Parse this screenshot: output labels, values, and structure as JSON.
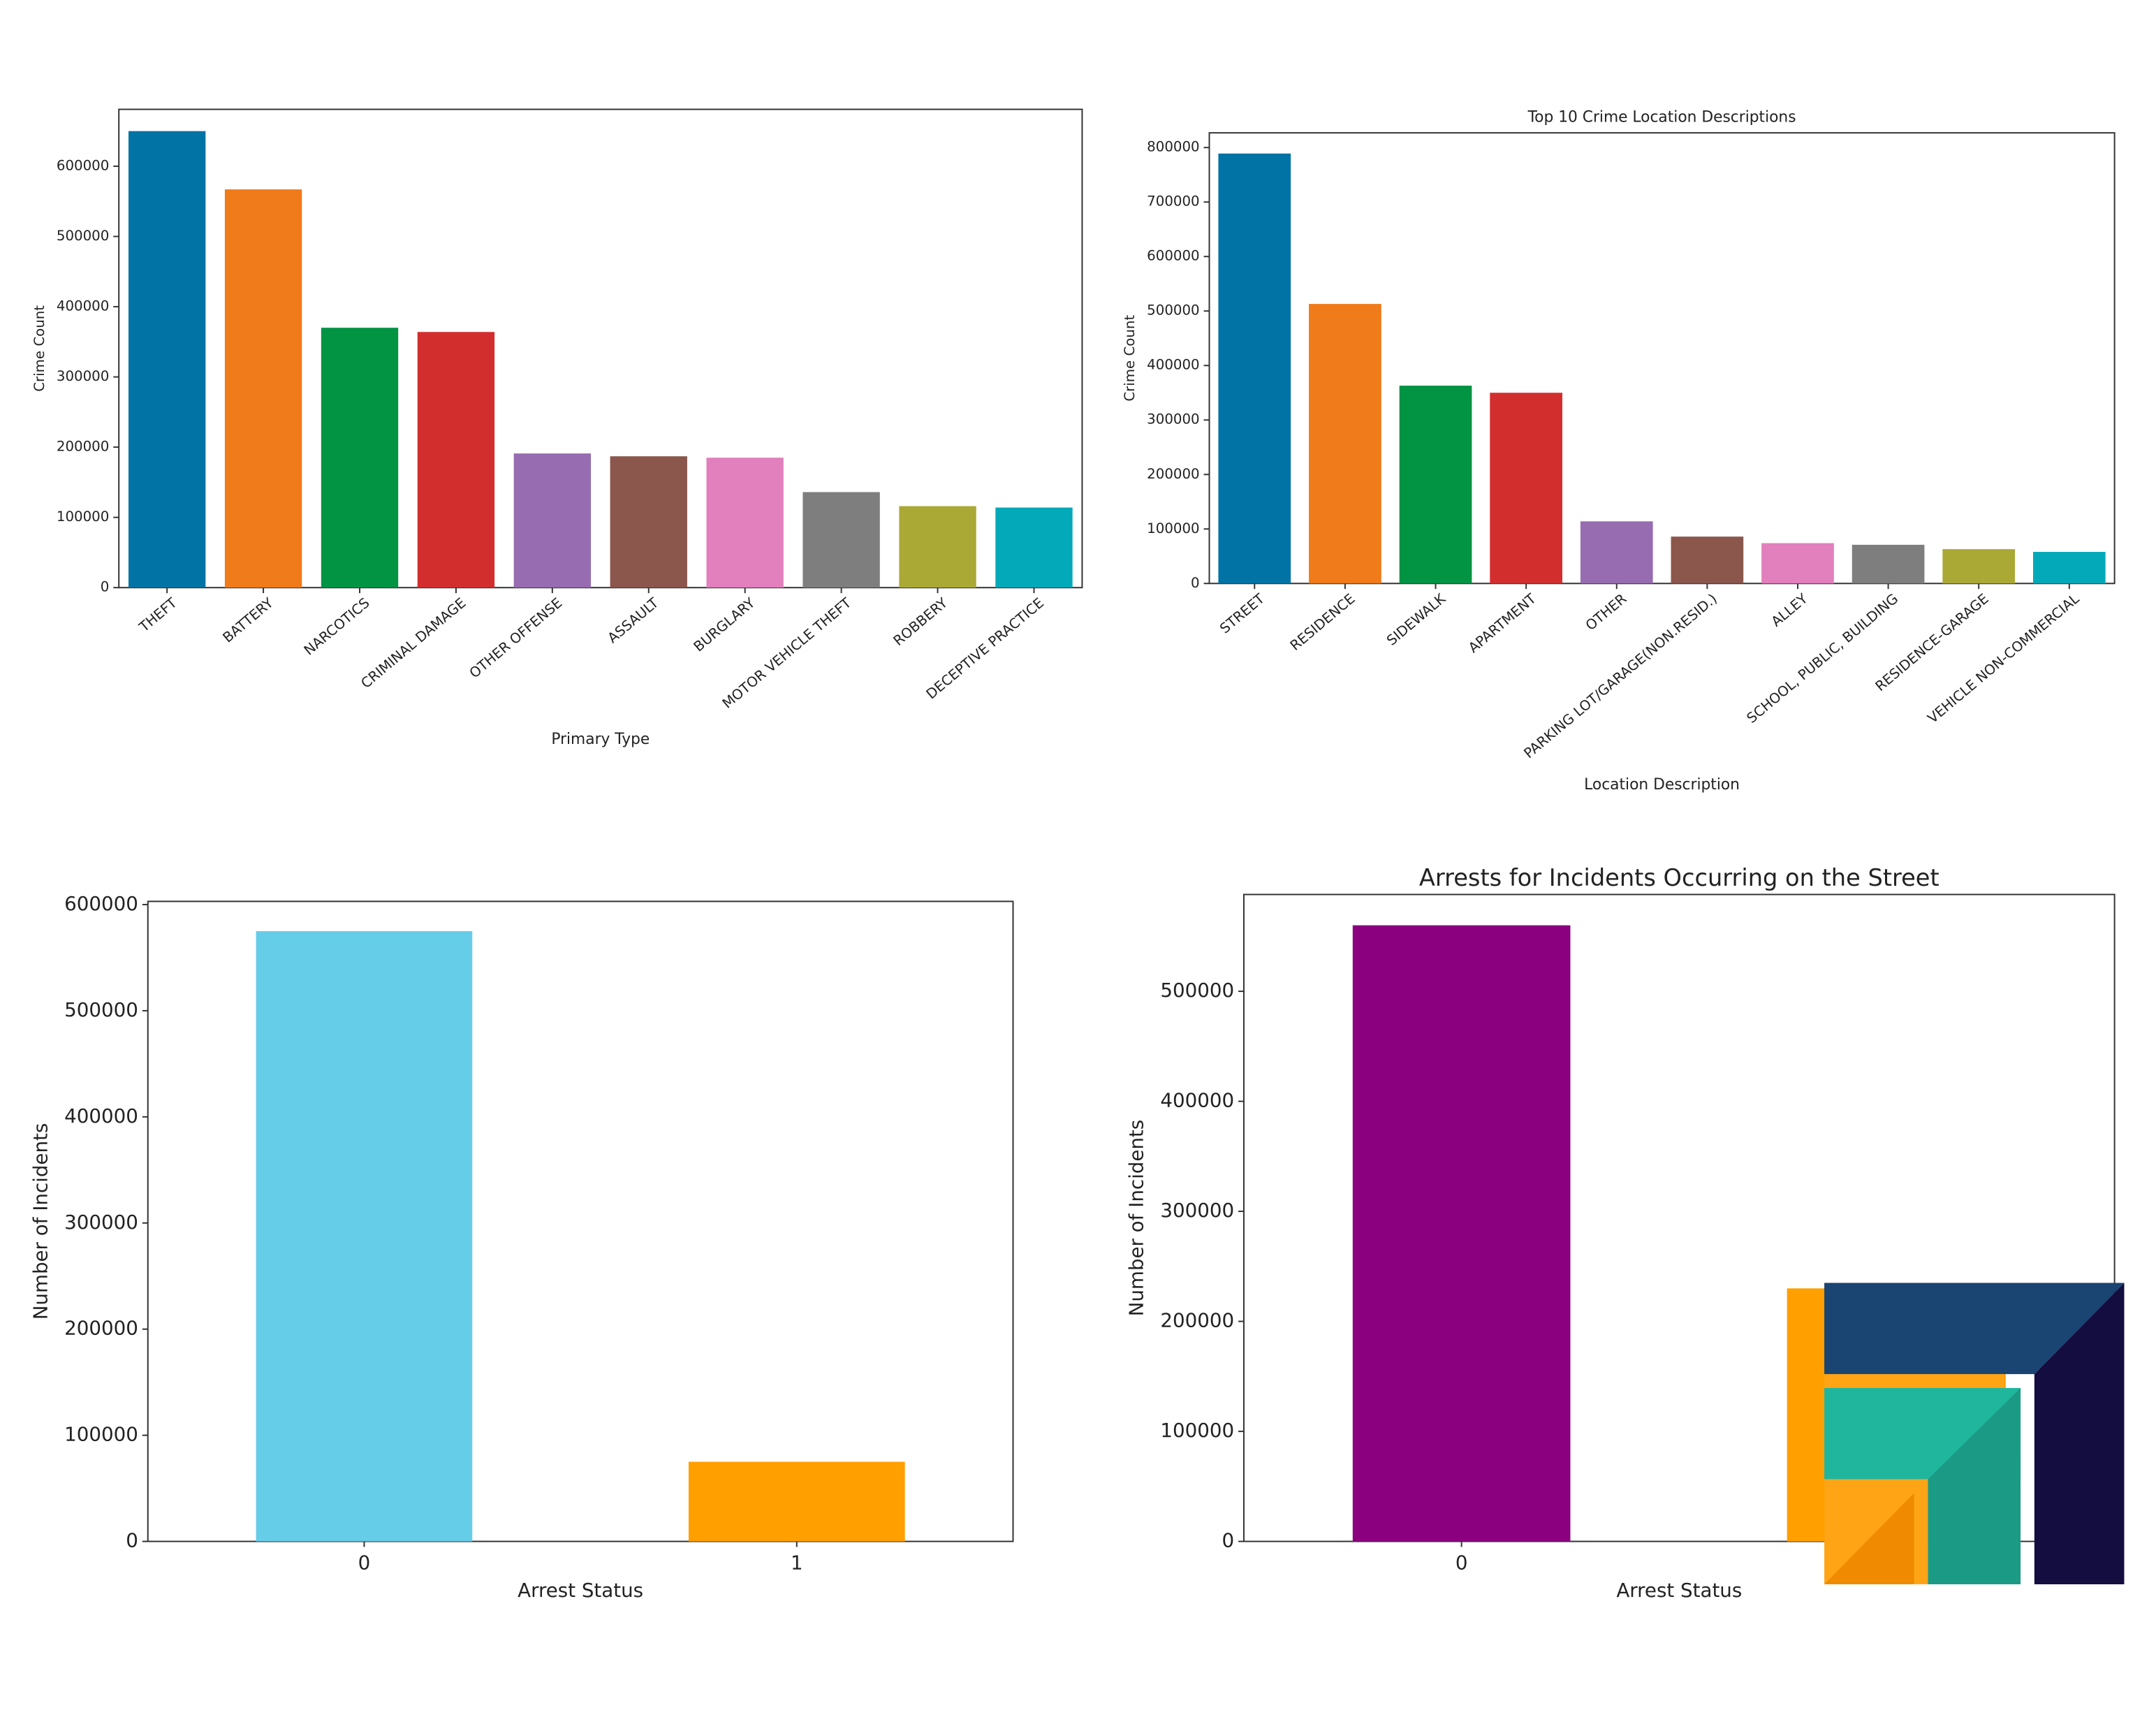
{
  "chart_data": [
    {
      "type": "bar",
      "x_label": "Primary Type",
      "y_label": "Crime Count",
      "categories": [
        "THEFT",
        "BATTERY",
        "NARCOTICS",
        "CRIMINAL DAMAGE",
        "OTHER OFFENSE",
        "ASSAULT",
        "BURGLARY",
        "MOTOR VEHICLE THEFT",
        "ROBBERY",
        "DECEPTIVE PRACTICE"
      ],
      "values": [
        650000,
        567000,
        370000,
        364000,
        191000,
        187000,
        185000,
        136000,
        116000,
        114000
      ],
      "colors": [
        "#0173a5",
        "#ef7b1a",
        "#029343",
        "#d32e2e",
        "#976cb0",
        "#8b564c",
        "#e27fbd",
        "#7e7e7e",
        "#aba935",
        "#03a9b9"
      ],
      "ylim": [
        0,
        681000
      ],
      "yticks": [
        0,
        100000,
        200000,
        300000,
        400000,
        500000,
        600000
      ]
    },
    {
      "type": "bar",
      "title": "Top 10 Crime Location Descriptions",
      "x_label": "Location Description",
      "y_label": "Crime Count",
      "categories": [
        "STREET",
        "RESIDENCE",
        "SIDEWALK",
        "APARTMENT",
        "OTHER",
        "PARKING LOT/GARAGE(NON.RESID.)",
        "ALLEY",
        "SCHOOL, PUBLIC, BUILDING",
        "RESIDENCE-GARAGE",
        "VEHICLE NON-COMMERCIAL"
      ],
      "values": [
        789000,
        513000,
        363000,
        350000,
        114000,
        86000,
        74000,
        71000,
        63000,
        58000
      ],
      "colors": [
        "#0173a5",
        "#ef7b1a",
        "#029343",
        "#d32e2e",
        "#976cb0",
        "#8b564c",
        "#e27fbd",
        "#7e7e7e",
        "#aba935",
        "#03a9b9"
      ],
      "ylim": [
        0,
        827000
      ],
      "yticks": [
        0,
        100000,
        200000,
        300000,
        400000,
        500000,
        600000,
        700000,
        800000
      ]
    },
    {
      "type": "bar",
      "x_label": "Arrest Status",
      "y_label": "Number of Incidents",
      "categories": [
        "0",
        "1"
      ],
      "values": [
        575000,
        75000
      ],
      "colors": [
        "#66cde9",
        "#ff9f00"
      ],
      "ylim": [
        0,
        603000
      ],
      "yticks": [
        0,
        100000,
        200000,
        300000,
        400000,
        500000,
        600000
      ]
    },
    {
      "type": "bar",
      "title": "Arrests for Incidents Occurring on the Street",
      "x_label": "Arrest Status",
      "y_label": "Number of Incidents",
      "categories": [
        "0",
        null
      ],
      "values": [
        560000,
        230000
      ],
      "colors": [
        "#8b007f",
        "#ff9f00"
      ],
      "ylim": [
        0,
        588000
      ],
      "yticks": [
        0,
        100000,
        200000,
        300000,
        400000,
        500000
      ]
    }
  ]
}
